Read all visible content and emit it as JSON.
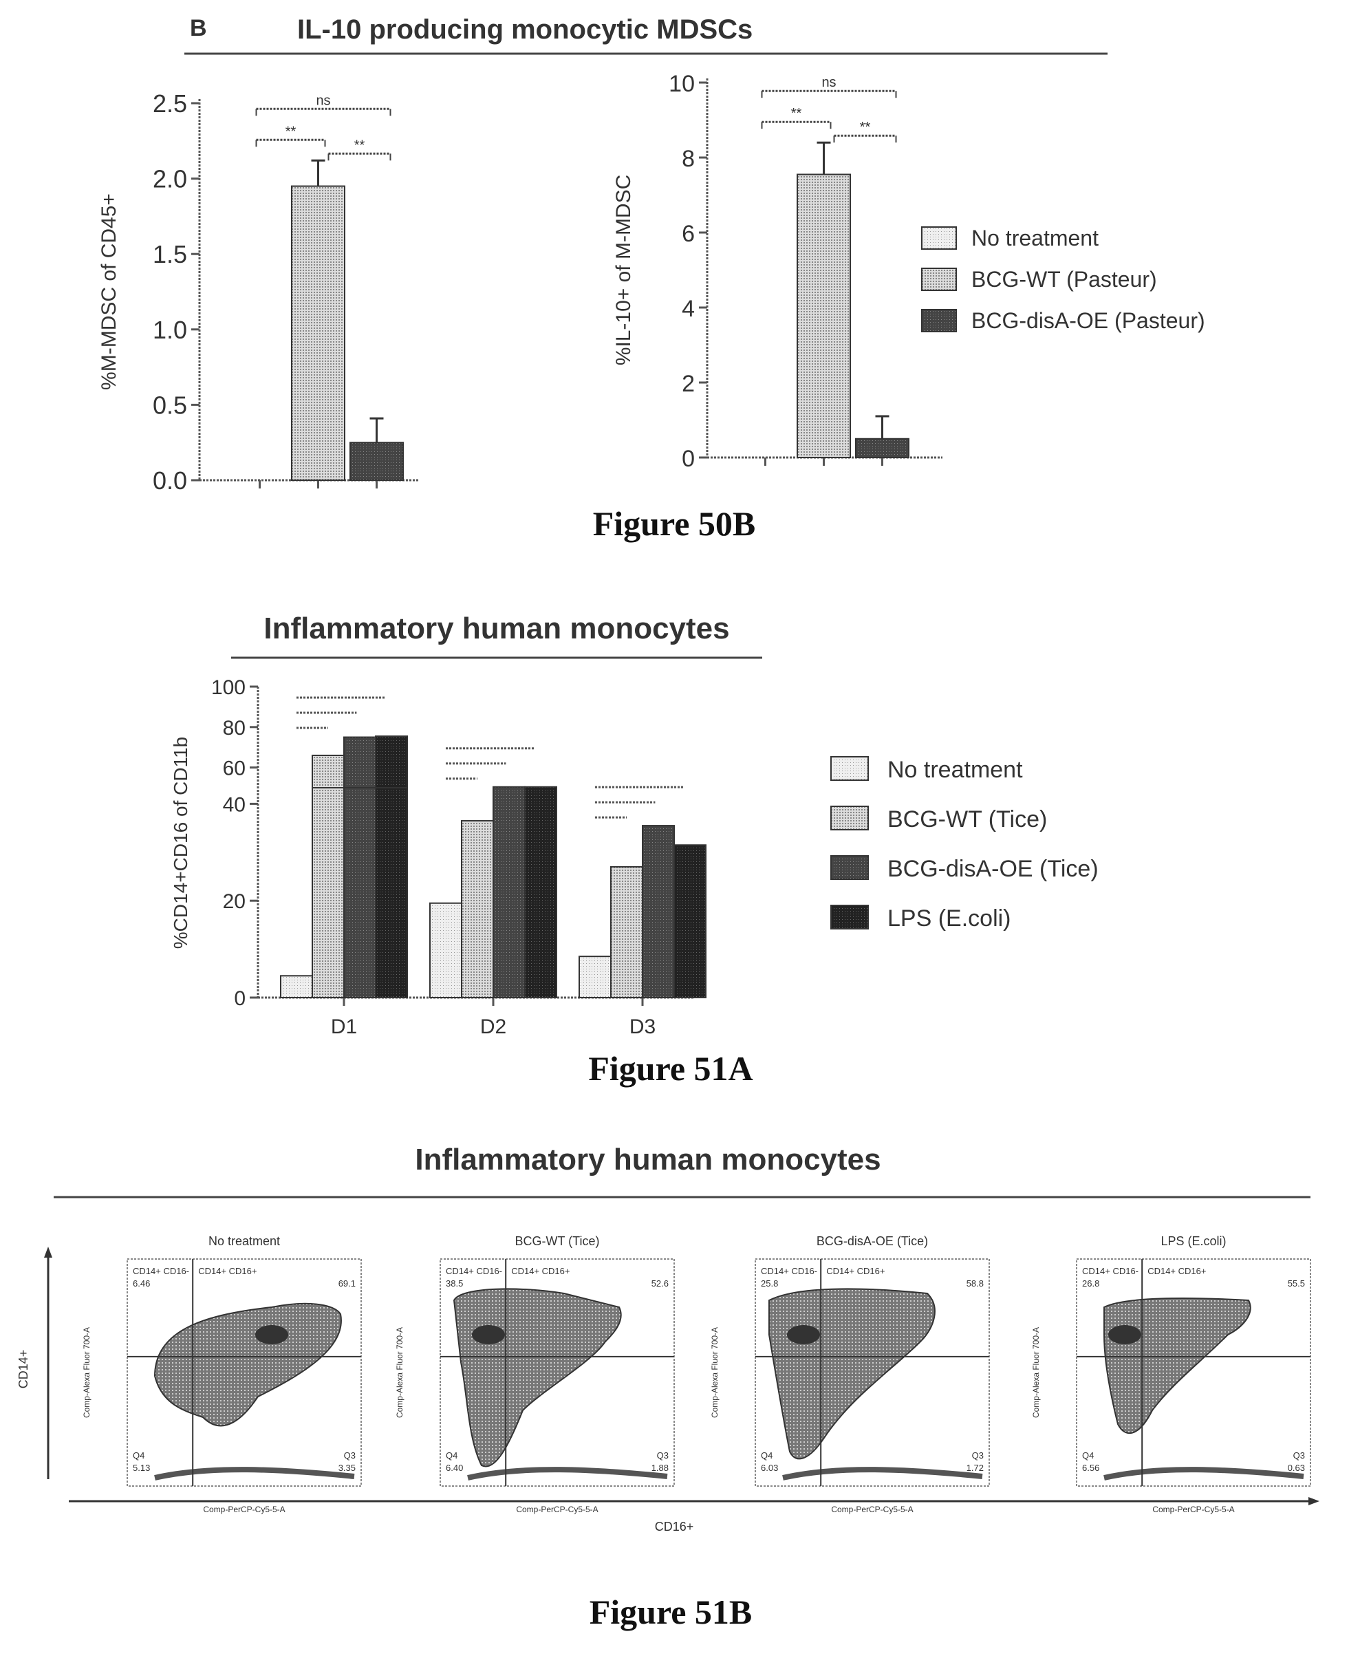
{
  "fig50b": {
    "panel_letter": "B",
    "title": "IL-10 producing monocytic MDSCs",
    "caption": "Figure 50B"
  },
  "fig51a": {
    "title": "Inflammatory human monocytes",
    "caption": "Figure 51A"
  },
  "fig51b": {
    "title": "Inflammatory human monocytes",
    "caption": "Figure 51B",
    "y_axis": "CD14+",
    "x_axis": "CD16+",
    "panels": [
      {
        "title": "No treatment",
        "q1": "CD14+ CD16-",
        "q1_val": "6.46",
        "q2": "CD14+ CD16+",
        "q2_val": "69.1",
        "q3_val": "3.35",
        "q4": "Q4",
        "q4_val": "5.13",
        "q3": "Q3",
        "yl": "Comp-Alexa Fluor 700-A",
        "xl": "Comp-PerCP-Cy5-5-A"
      },
      {
        "title": "BCG-WT (Tice)",
        "q1": "CD14+ CD16-",
        "q1_val": "38.5",
        "q2": "CD14+ CD16+",
        "q2_val": "52.6",
        "q3_val": "1.88",
        "q4": "Q4",
        "q4_val": "6.40",
        "q3": "Q3",
        "yl": "Comp-Alexa Fluor 700-A",
        "xl": "Comp-PerCP-Cy5-5-A"
      },
      {
        "title": "BCG-disA-OE (Tice)",
        "q1": "CD14+ CD16-",
        "q1_val": "25.8",
        "q2": "CD14+ CD16+",
        "q2_val": "58.8",
        "q3_val": "1.72",
        "q4": "Q4",
        "q4_val": "6.03",
        "q3": "Q3",
        "yl": "Comp-Alexa Fluor 700-A",
        "xl": "Comp-PerCP-Cy5-5-A"
      },
      {
        "title": "LPS (E.coli)",
        "q1": "CD14+ CD16-",
        "q1_val": "26.8",
        "q2": "CD14+ CD16+",
        "q2_val": "55.5",
        "q3_val": "0.63",
        "q4": "Q4",
        "q4_val": "6.56",
        "q3": "Q3",
        "yl": "Comp-Alexa Fluor 700-A",
        "xl": "Comp-PerCP-Cy5-5-A"
      }
    ]
  },
  "colors": {
    "no_treatment": "#e6e6e6",
    "wt": "#cfcfcf",
    "disA": "#3a3a3a",
    "lps": "#1f1f1f"
  },
  "chart_data": [
    {
      "type": "bar",
      "ylabel": "%M-MDSC of CD45+",
      "categories": [
        "No treatment",
        "BCG-WT (Pasteur)",
        "BCG-disA-OE (Pasteur)"
      ],
      "values": [
        0,
        1.95,
        0.25
      ],
      "errors": [
        0,
        0.17,
        0.16
      ],
      "ylim": [
        0,
        2.5
      ],
      "yticks": [
        "0.0",
        "0.5",
        "1.0",
        "1.5",
        "2.0",
        "2.5"
      ],
      "significance": [
        "ns",
        "**",
        "**"
      ]
    },
    {
      "type": "bar",
      "ylabel": "%IL-10+ of M-MDSC",
      "categories": [
        "No treatment",
        "BCG-WT (Pasteur)",
        "BCG-disA-OE (Pasteur)"
      ],
      "values": [
        0,
        7.55,
        0.5
      ],
      "errors": [
        0,
        0.85,
        0.6
      ],
      "ylim": [
        0,
        10
      ],
      "yticks": [
        "0",
        "2",
        "4",
        "6",
        "8",
        "10"
      ],
      "significance": [
        "ns",
        "**",
        "**"
      ],
      "legend": [
        "No treatment",
        "BCG-WT (Pasteur)",
        "BCG-disA-OE (Pasteur)"
      ]
    },
    {
      "type": "bar",
      "ylabel": "%CD14+CD16 of CD11b",
      "categories": [
        "D1",
        "D2",
        "D3"
      ],
      "series": [
        {
          "name": "No treatment",
          "values": [
            4.5,
            19.5,
            8.5
          ]
        },
        {
          "name": "BCG-WT (Tice)",
          "values": [
            66,
            36.5,
            27
          ]
        },
        {
          "name": "BCG-disA-OE (Tice)",
          "values": [
            75,
            43.5,
            35.5
          ]
        },
        {
          "name": "LPS (E.coli)",
          "values": [
            75.5,
            43.5,
            31.5
          ]
        }
      ],
      "ylim": [
        0,
        100
      ],
      "yticks_lower": [
        "0",
        "20",
        "40"
      ],
      "yticks_upper": [
        "60",
        "80",
        "100"
      ]
    }
  ]
}
